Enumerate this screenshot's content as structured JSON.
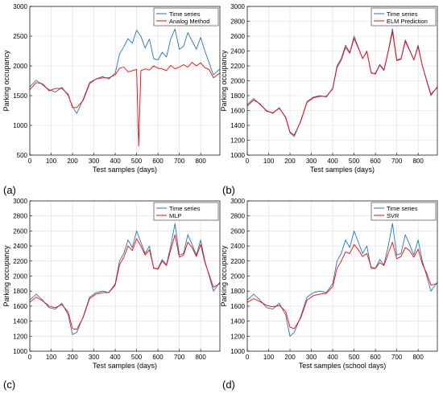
{
  "chart_data": [
    {
      "type": "line",
      "panel_label": "(a)",
      "xlabel": "Test samples (days)",
      "ylabel": "Parking occupancy",
      "xlim": [
        0,
        890
      ],
      "ylim": [
        500,
        3000
      ],
      "xticks": [
        0,
        100,
        200,
        300,
        400,
        500,
        600,
        700,
        800
      ],
      "yticks": [
        500,
        1000,
        1500,
        2000,
        2500,
        3000
      ],
      "grid": true,
      "legend_position": "top-right",
      "series": [
        {
          "name": "Time series",
          "color": "#1f77b4",
          "x": [
            0,
            30,
            60,
            90,
            120,
            150,
            180,
            200,
            220,
            250,
            280,
            310,
            340,
            370,
            400,
            420,
            440,
            460,
            480,
            500,
            520,
            540,
            560,
            580,
            600,
            620,
            640,
            660,
            680,
            700,
            720,
            740,
            760,
            780,
            800,
            820,
            840,
            860,
            890
          ],
          "y": [
            1650,
            1760,
            1680,
            1600,
            1560,
            1640,
            1500,
            1320,
            1200,
            1440,
            1720,
            1780,
            1820,
            1780,
            1880,
            2200,
            2320,
            2460,
            2380,
            2600,
            2500,
            2300,
            2450,
            2120,
            2100,
            2230,
            2150,
            2460,
            2620,
            2280,
            2330,
            2560,
            2420,
            2280,
            2480,
            2250,
            2050,
            1850,
            1950
          ]
        },
        {
          "name": "Analog Method",
          "color": "#ff0000",
          "x": [
            0,
            30,
            60,
            90,
            120,
            150,
            180,
            200,
            220,
            250,
            280,
            310,
            340,
            370,
            400,
            420,
            440,
            460,
            480,
            500,
            510,
            520,
            540,
            560,
            580,
            600,
            620,
            640,
            660,
            680,
            700,
            720,
            740,
            760,
            780,
            800,
            820,
            840,
            860,
            890
          ],
          "y": [
            1600,
            1720,
            1700,
            1580,
            1620,
            1620,
            1520,
            1300,
            1300,
            1420,
            1700,
            1780,
            1800,
            1800,
            1850,
            1960,
            1980,
            1900,
            1920,
            1940,
            650,
            1920,
            1950,
            1930,
            2000,
            1960,
            1950,
            1920,
            2010,
            1950,
            1980,
            2020,
            1980,
            2060,
            2000,
            2050,
            1970,
            1940,
            1800,
            1880
          ]
        }
      ]
    },
    {
      "type": "line",
      "panel_label": "(b)",
      "xlabel": "Test samples (days)",
      "ylabel": "Parking occupancy",
      "xlim": [
        0,
        890
      ],
      "ylim": [
        1000,
        3000
      ],
      "xticks": [
        0,
        100,
        200,
        300,
        400,
        500,
        600,
        700,
        800
      ],
      "yticks": [
        1000,
        1200,
        1400,
        1600,
        1800,
        2000,
        2200,
        2400,
        2600,
        2800,
        3000
      ],
      "grid": true,
      "legend_position": "top-right",
      "series": [
        {
          "name": "Time series",
          "color": "#1f77b4",
          "x": [
            0,
            30,
            60,
            90,
            120,
            150,
            180,
            200,
            220,
            250,
            280,
            310,
            340,
            370,
            400,
            420,
            440,
            460,
            480,
            500,
            520,
            540,
            560,
            580,
            600,
            620,
            640,
            660,
            680,
            700,
            720,
            740,
            760,
            780,
            800,
            820,
            840,
            860,
            890
          ],
          "y": [
            1680,
            1760,
            1680,
            1600,
            1560,
            1640,
            1500,
            1300,
            1250,
            1460,
            1720,
            1780,
            1800,
            1780,
            1900,
            2200,
            2300,
            2480,
            2380,
            2600,
            2450,
            2300,
            2400,
            2100,
            2100,
            2220,
            2150,
            2400,
            2700,
            2280,
            2300,
            2550,
            2420,
            2280,
            2480,
            2200,
            2000,
            1800,
            1920
          ]
        },
        {
          "name": "ELM Prediction",
          "color": "#ff0000",
          "x": [
            0,
            30,
            60,
            90,
            120,
            150,
            180,
            200,
            220,
            250,
            280,
            310,
            340,
            370,
            400,
            420,
            440,
            460,
            480,
            500,
            520,
            540,
            560,
            580,
            600,
            620,
            640,
            660,
            680,
            700,
            720,
            740,
            760,
            780,
            800,
            820,
            840,
            860,
            890
          ],
          "y": [
            1660,
            1740,
            1690,
            1590,
            1570,
            1630,
            1510,
            1310,
            1270,
            1450,
            1710,
            1770,
            1790,
            1790,
            1890,
            2180,
            2280,
            2450,
            2370,
            2570,
            2440,
            2300,
            2390,
            2110,
            2090,
            2210,
            2140,
            2390,
            2660,
            2270,
            2290,
            2530,
            2410,
            2280,
            2460,
            2200,
            2010,
            1820,
            1910
          ]
        }
      ]
    },
    {
      "type": "line",
      "panel_label": "(c)",
      "xlabel": "Test samples (days)",
      "ylabel": "Parking occupancy",
      "xlim": [
        0,
        890
      ],
      "ylim": [
        1000,
        3000
      ],
      "xticks": [
        0,
        100,
        200,
        300,
        400,
        500,
        600,
        700,
        800
      ],
      "yticks": [
        1000,
        1200,
        1400,
        1600,
        1800,
        2000,
        2200,
        2400,
        2600,
        2800,
        3000
      ],
      "grid": true,
      "legend_position": "top-right",
      "series": [
        {
          "name": "Time series",
          "color": "#1f77b4",
          "x": [
            0,
            30,
            60,
            90,
            120,
            150,
            180,
            200,
            220,
            250,
            280,
            310,
            340,
            370,
            400,
            420,
            440,
            460,
            480,
            500,
            520,
            540,
            560,
            580,
            600,
            620,
            640,
            660,
            680,
            700,
            720,
            740,
            760,
            780,
            800,
            820,
            840,
            860,
            890
          ],
          "y": [
            1680,
            1760,
            1680,
            1580,
            1560,
            1640,
            1480,
            1220,
            1250,
            1460,
            1720,
            1780,
            1800,
            1780,
            1900,
            2200,
            2300,
            2480,
            2380,
            2600,
            2450,
            2300,
            2400,
            2100,
            2100,
            2220,
            2150,
            2400,
            2700,
            2280,
            2300,
            2550,
            2420,
            2280,
            2480,
            2200,
            2000,
            1800,
            1920
          ]
        },
        {
          "name": "MLP",
          "color": "#ff0000",
          "x": [
            0,
            30,
            60,
            90,
            120,
            150,
            180,
            200,
            220,
            250,
            280,
            310,
            340,
            370,
            400,
            420,
            440,
            460,
            480,
            500,
            520,
            540,
            560,
            580,
            600,
            620,
            640,
            660,
            680,
            700,
            720,
            740,
            760,
            780,
            800,
            820,
            840,
            860,
            890
          ],
          "y": [
            1650,
            1720,
            1670,
            1600,
            1580,
            1620,
            1520,
            1300,
            1290,
            1450,
            1700,
            1760,
            1780,
            1780,
            1880,
            2150,
            2250,
            2400,
            2340,
            2500,
            2400,
            2280,
            2350,
            2110,
            2090,
            2200,
            2140,
            2350,
            2550,
            2250,
            2280,
            2450,
            2380,
            2260,
            2420,
            2180,
            2020,
            1850,
            1900
          ]
        }
      ]
    },
    {
      "type": "line",
      "panel_label": "(d)",
      "xlabel": "Test samples (school days)",
      "ylabel": "Parking occupancy",
      "xlim": [
        0,
        890
      ],
      "ylim": [
        1000,
        3000
      ],
      "xticks": [
        0,
        100,
        200,
        300,
        400,
        500,
        600,
        700,
        800
      ],
      "yticks": [
        1000,
        1200,
        1400,
        1600,
        1800,
        2000,
        2200,
        2400,
        2600,
        2800,
        3000
      ],
      "grid": true,
      "legend_position": "top-right",
      "series": [
        {
          "name": "Time series",
          "color": "#1f77b4",
          "x": [
            0,
            30,
            60,
            90,
            120,
            150,
            180,
            200,
            220,
            250,
            280,
            310,
            340,
            370,
            400,
            420,
            440,
            460,
            480,
            500,
            520,
            540,
            560,
            580,
            600,
            620,
            640,
            660,
            680,
            700,
            720,
            740,
            760,
            780,
            800,
            820,
            840,
            860,
            890
          ],
          "y": [
            1680,
            1760,
            1680,
            1580,
            1560,
            1640,
            1480,
            1200,
            1250,
            1460,
            1720,
            1780,
            1800,
            1780,
            1900,
            2200,
            2300,
            2480,
            2380,
            2600,
            2450,
            2300,
            2400,
            2100,
            2100,
            2220,
            2150,
            2400,
            2700,
            2280,
            2300,
            2550,
            2420,
            2280,
            2480,
            2200,
            2000,
            1800,
            1920
          ]
        },
        {
          "name": "SVR",
          "color": "#ff0000",
          "x": [
            0,
            30,
            60,
            90,
            120,
            150,
            180,
            200,
            220,
            250,
            280,
            310,
            340,
            370,
            400,
            420,
            440,
            460,
            480,
            500,
            520,
            540,
            560,
            580,
            600,
            620,
            640,
            660,
            680,
            700,
            720,
            740,
            760,
            780,
            800,
            820,
            840,
            860,
            890
          ],
          "y": [
            1650,
            1700,
            1660,
            1610,
            1590,
            1610,
            1530,
            1320,
            1300,
            1440,
            1680,
            1740,
            1760,
            1770,
            1860,
            2100,
            2200,
            2320,
            2300,
            2420,
            2350,
            2260,
            2300,
            2120,
            2100,
            2180,
            2140,
            2300,
            2450,
            2230,
            2260,
            2380,
            2340,
            2250,
            2360,
            2160,
            2040,
            1880,
            1900
          ]
        }
      ]
    }
  ]
}
